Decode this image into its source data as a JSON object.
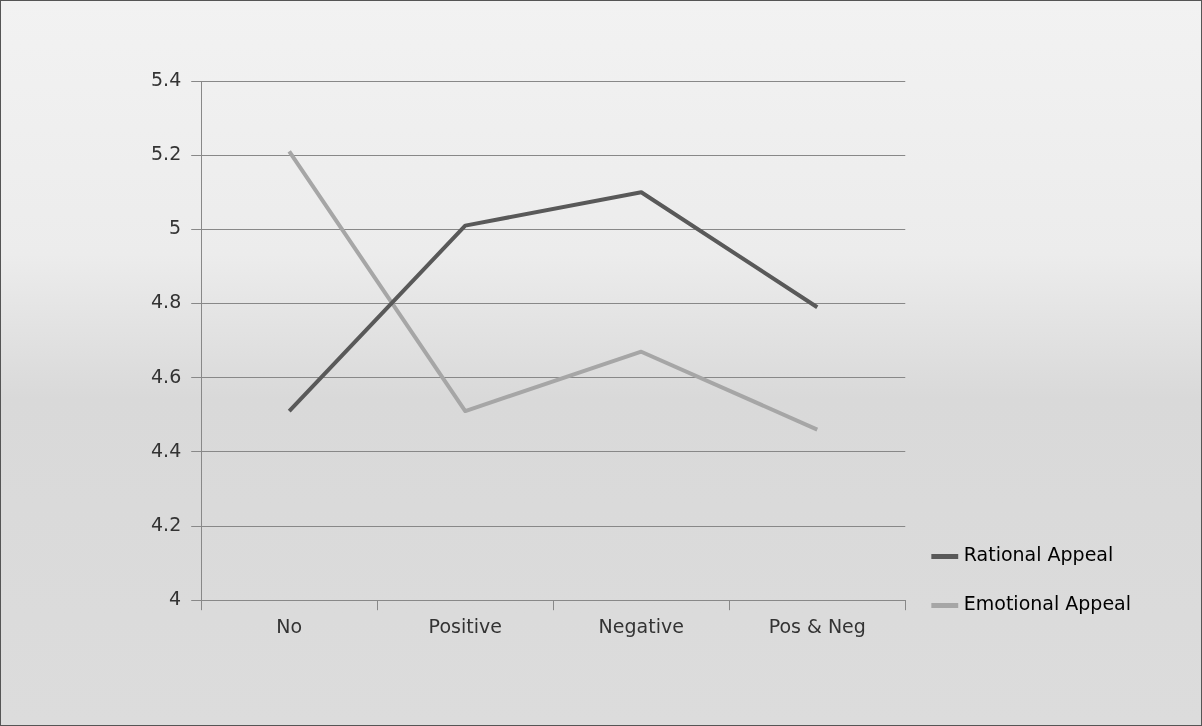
{
  "chart_data": {
    "type": "line",
    "categories": [
      "No",
      "Positive",
      "Negative",
      "Pos & Neg"
    ],
    "series": [
      {
        "name": "Rational Appeal",
        "color": "#595959",
        "values": [
          4.51,
          5.01,
          5.1,
          4.79
        ]
      },
      {
        "name": "Emotional Appeal",
        "color": "#a6a6a6",
        "values": [
          5.21,
          4.51,
          4.67,
          4.46
        ]
      }
    ],
    "ylim": [
      4,
      5.4
    ],
    "yticks": [
      {
        "value": 4,
        "label": "4"
      },
      {
        "value": 4.2,
        "label": "4.2"
      },
      {
        "value": 4.4,
        "label": "4.4"
      },
      {
        "value": 4.6,
        "label": "4.6"
      },
      {
        "value": 4.8,
        "label": "4.8"
      },
      {
        "value": 5,
        "label": "5"
      },
      {
        "value": 5.2,
        "label": "5.2"
      },
      {
        "value": 5.4,
        "label": "5.4"
      }
    ],
    "grid": "y",
    "legend": "right",
    "marker": "none",
    "line_style": "solid"
  }
}
